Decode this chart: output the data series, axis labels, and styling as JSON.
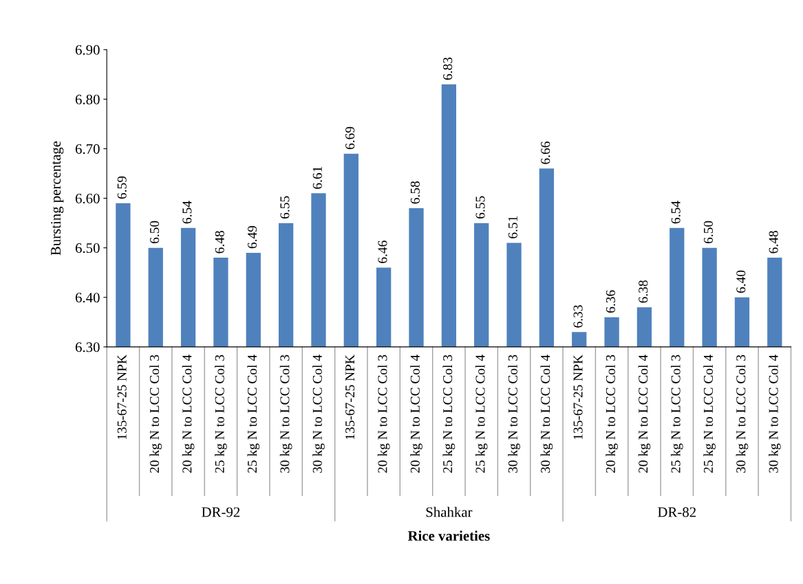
{
  "chart_data": {
    "type": "bar",
    "ylabel": "Bursting percentage",
    "xlabel": "Rice varieties",
    "categories": [
      "135-67-25 NPK",
      "20 kg N to LCC Col 3",
      "20 kg N to LCC Col 4",
      "25 kg N to LCC Col 3",
      "25 kg N to LCC Col 4",
      "30 kg N to LCC Col 3",
      "30 kg N to LCC Col 4",
      "135-67-25 NPK",
      "20 kg N to LCC Col 3",
      "20 kg N to LCC Col 4",
      "25 kg N to LCC Col 3",
      "25 kg N to LCC Col 4",
      "30 kg N to LCC Col 3",
      "30 kg N to LCC Col 4",
      "135-67-25 NPK",
      "20 kg N to LCC Col 3",
      "20 kg N to LCC Col 4",
      "25 kg N to LCC Col 3",
      "25 kg N to LCC Col 4",
      "30 kg N to LCC Col 3",
      "30 kg N to LCC Col 4"
    ],
    "values": [
      6.59,
      6.5,
      6.54,
      6.48,
      6.49,
      6.55,
      6.61,
      6.69,
      6.46,
      6.58,
      6.83,
      6.55,
      6.51,
      6.66,
      6.33,
      6.36,
      6.38,
      6.54,
      6.5,
      6.4,
      6.48
    ],
    "value_labels": [
      "6.59",
      "6.50",
      "6.54",
      "6.48",
      "6.49",
      "6.55",
      "6.61",
      "6.69",
      "6.46",
      "6.58",
      "6.83",
      "6.55",
      "6.51",
      "6.66",
      "6.33",
      "6.36",
      "6.38",
      "6.54",
      "6.50",
      "6.40",
      "6.48"
    ],
    "color": "#4f81bd",
    "ylim": [
      6.3,
      6.9
    ],
    "yticks": [
      {
        "value": 6.3,
        "label": "6.30"
      },
      {
        "value": 6.4,
        "label": "6.40"
      },
      {
        "value": 6.5,
        "label": "6.50"
      },
      {
        "value": 6.6,
        "label": "6.60"
      },
      {
        "value": 6.7,
        "label": "6.70"
      },
      {
        "value": 6.8,
        "label": "6.80"
      },
      {
        "value": 6.9,
        "label": "6.90"
      }
    ],
    "annotations": [
      "DR-92",
      "Shahkar",
      "DR-82"
    ],
    "grid": false,
    "legend": false
  }
}
